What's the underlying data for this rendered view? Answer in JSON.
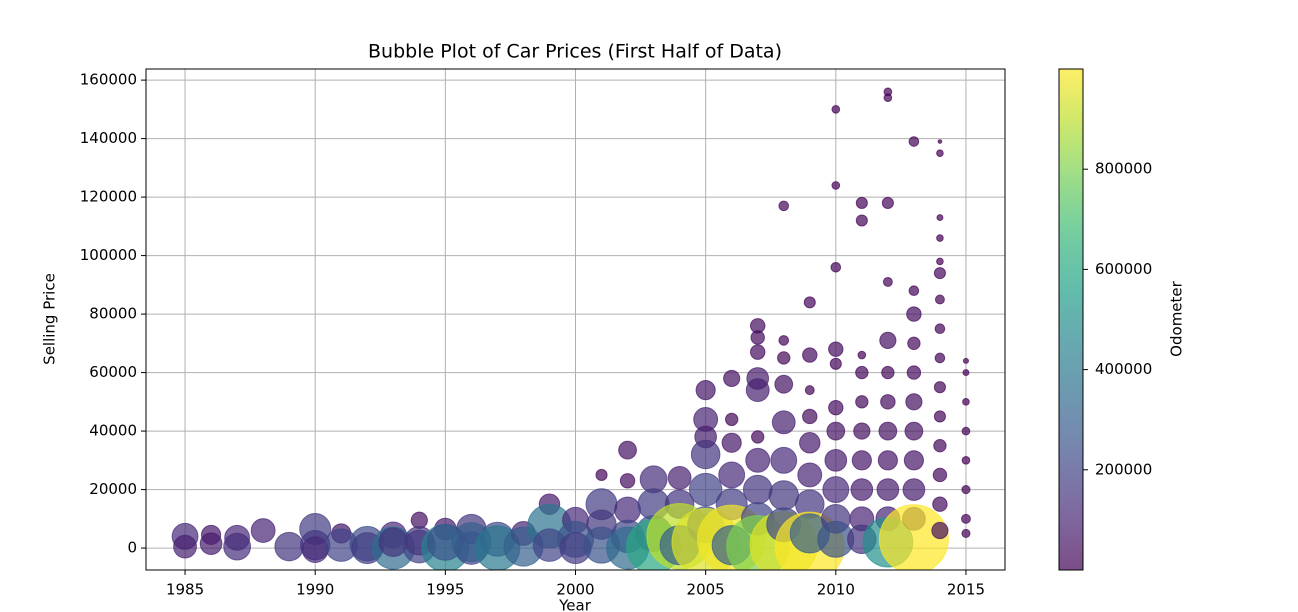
{
  "chart_data": {
    "type": "bubble",
    "title": "Bubble Plot of Car Prices (First Half of Data)",
    "x_label": "Year",
    "y_label": "Selling Price",
    "xlim": [
      1983.5,
      2016.5
    ],
    "xticks": [
      1985,
      1990,
      1995,
      2000,
      2005,
      2010,
      2015
    ],
    "ylim": [
      -7500,
      163800
    ],
    "yticks": [
      0,
      20000,
      40000,
      60000,
      80000,
      100000,
      120000,
      140000,
      160000
    ],
    "grid": true,
    "colormap": "viridis",
    "opacity": 0.7,
    "colorbar": {
      "label": "Odometer",
      "lim": [
        0,
        999999
      ],
      "ticks": [
        200000,
        400000,
        600000,
        800000
      ]
    },
    "x": [
      1985,
      1985,
      1986,
      1986,
      1987,
      1987,
      1988,
      1989,
      1990,
      1990,
      1990,
      1991,
      1991,
      1992,
      1992,
      1993,
      1993,
      1993,
      1994,
      1994,
      1994,
      1995,
      1995,
      1995,
      1996,
      1996,
      1996,
      1997,
      1997,
      1998,
      1998,
      1999,
      1999,
      1999,
      2000,
      2000,
      2000,
      2001,
      2001,
      2001,
      2001,
      2002,
      2002,
      2002,
      2002,
      2002,
      2003,
      2003,
      2003,
      2003,
      2004,
      2004,
      2004,
      2004,
      2005,
      2005,
      2005,
      2005,
      2005,
      2005,
      2005,
      2006,
      2006,
      2006,
      2006,
      2006,
      2006,
      2006,
      2007,
      2007,
      2007,
      2007,
      2007,
      2007,
      2007,
      2007,
      2007,
      2007,
      2008,
      2008,
      2008,
      2008,
      2008,
      2008,
      2008,
      2008,
      2008,
      2009,
      2009,
      2009,
      2009,
      2009,
      2009,
      2009,
      2009,
      2009,
      2010,
      2010,
      2010,
      2010,
      2010,
      2010,
      2010,
      2010,
      2010,
      2010,
      2010,
      2011,
      2011,
      2011,
      2011,
      2011,
      2011,
      2011,
      2011,
      2011,
      2011,
      2012,
      2012,
      2012,
      2012,
      2012,
      2012,
      2012,
      2012,
      2012,
      2012,
      2012,
      2012,
      2013,
      2013,
      2013,
      2013,
      2013,
      2013,
      2013,
      2013,
      2013,
      2013,
      2013,
      2014,
      2014,
      2014,
      2014,
      2014,
      2014,
      2014,
      2014,
      2014,
      2014,
      2014,
      2014,
      2014,
      2014,
      2014,
      2015,
      2015,
      2015,
      2015,
      2015,
      2015,
      2015,
      2015
    ],
    "values": [
      4000,
      500,
      4500,
      1500,
      3500,
      500,
      6000,
      500,
      6500,
      1000,
      -500,
      5000,
      1000,
      1500,
      0,
      4500,
      0,
      2000,
      9500,
      500,
      2500,
      6500,
      0,
      2000,
      6500,
      0,
      2000,
      3000,
      0,
      5000,
      500,
      15000,
      7500,
      1000,
      9500,
      3000,
      0,
      25000,
      15000,
      8000,
      1000,
      33500,
      23000,
      13000,
      4000,
      0,
      23500,
      15000,
      5000,
      500,
      24000,
      15000,
      4000,
      1000,
      54000,
      44000,
      38000,
      32000,
      20000,
      8000,
      2000,
      58000,
      44000,
      36000,
      25000,
      15000,
      3000,
      1000,
      76000,
      72000,
      67000,
      58000,
      54000,
      38000,
      30000,
      20000,
      10000,
      500,
      117000,
      71000,
      65000,
      56000,
      43000,
      30000,
      18000,
      1000,
      8000,
      84000,
      66000,
      54000,
      45000,
      36000,
      25000,
      15000,
      500,
      5000,
      150000,
      124000,
      96000,
      68000,
      63000,
      48000,
      40000,
      30000,
      20000,
      10000,
      3000,
      118000,
      112000,
      66000,
      60000,
      50000,
      40000,
      30000,
      20000,
      10000,
      3000,
      156000,
      154000,
      118000,
      91000,
      71000,
      60000,
      50000,
      40000,
      30000,
      20000,
      10000,
      2000,
      139000,
      88000,
      80000,
      70000,
      60000,
      50000,
      40000,
      30000,
      20000,
      10000,
      3000,
      139000,
      135000,
      113000,
      106000,
      98000,
      94000,
      85000,
      75000,
      65000,
      55000,
      45000,
      35000,
      25000,
      15000,
      6000,
      64000,
      60000,
      50000,
      40000,
      30000,
      20000,
      10000,
      5000
    ],
    "odometer": [
      120000,
      90000,
      60000,
      80000,
      110000,
      130000,
      100000,
      150000,
      180000,
      160000,
      120000,
      60000,
      200000,
      230000,
      180000,
      120000,
      350000,
      150000,
      40000,
      200000,
      150000,
      80000,
      450000,
      250000,
      160000,
      200000,
      300000,
      220000,
      400000,
      100000,
      300000,
      70000,
      380000,
      200000,
      120000,
      250000,
      180000,
      15000,
      180000,
      160000,
      250000,
      50000,
      30000,
      120000,
      200000,
      350000,
      130000,
      180000,
      250000,
      600000,
      90000,
      150000,
      900000,
      300000,
      60000,
      100000,
      80000,
      150000,
      200000,
      250000,
      950000,
      40000,
      20000,
      60000,
      120000,
      180000,
      980000,
      300000,
      30000,
      25000,
      30000,
      80000,
      90000,
      20000,
      100000,
      150000,
      200000,
      800000,
      10000,
      10000,
      20000,
      50000,
      90000,
      120000,
      160000,
      950000,
      220000,
      15000,
      30000,
      8000,
      30000,
      70000,
      100000,
      150000,
      999000,
      300000,
      5000,
      5000,
      10000,
      30000,
      15000,
      30000,
      50000,
      80000,
      120000,
      150000,
      250000,
      15000,
      15000,
      5000,
      20000,
      20000,
      40000,
      60000,
      80000,
      100000,
      150000,
      5000,
      5000,
      15000,
      8000,
      40000,
      20000,
      30000,
      50000,
      60000,
      80000,
      100000,
      500000,
      10000,
      10000,
      30000,
      20000,
      25000,
      40000,
      50000,
      60000,
      80000,
      90000,
      999000,
      100,
      3000,
      2000,
      3000,
      3000,
      15000,
      8000,
      10000,
      10000,
      15000,
      15000,
      20000,
      25000,
      30000,
      40000,
      1000,
      2000,
      3000,
      5000,
      5000,
      6000,
      8000,
      6000
    ]
  }
}
